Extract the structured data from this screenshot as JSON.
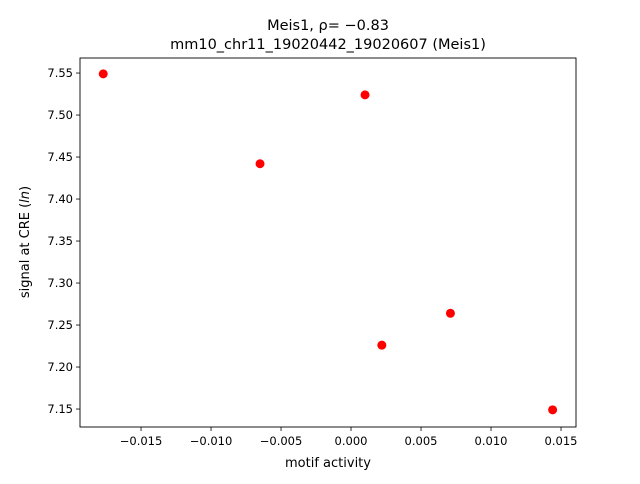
{
  "chart_data": {
    "type": "scatter",
    "title_line1": "Meis1, ρ= −0.83",
    "title_line2": "mm10_chr11_19020442_19020607 (Meis1)",
    "xlabel": "motif activity",
    "ylabel": "signal at CRE (ln)",
    "xlim": [
      -0.01936,
      0.01607
    ],
    "ylim": [
      7.1286,
      7.5679
    ],
    "xticks": [
      -0.015,
      -0.01,
      -0.005,
      0.0,
      0.005,
      0.01,
      0.015
    ],
    "xtick_labels": [
      "−0.015",
      "−0.010",
      "−0.005",
      "0.000",
      "0.005",
      "0.010",
      "0.015"
    ],
    "yticks": [
      7.15,
      7.2,
      7.25,
      7.3,
      7.35,
      7.4,
      7.45,
      7.5,
      7.55
    ],
    "ytick_labels": [
      "7.15",
      "7.20",
      "7.25",
      "7.30",
      "7.35",
      "7.40",
      "7.45",
      "7.50",
      "7.55"
    ],
    "grid": false,
    "marker_color": "#ff0000",
    "points": [
      {
        "x": -0.0177,
        "y": 7.549
      },
      {
        "x": 0.001,
        "y": 7.524
      },
      {
        "x": -0.0065,
        "y": 7.442
      },
      {
        "x": 0.0071,
        "y": 7.264
      },
      {
        "x": 0.0022,
        "y": 7.226
      },
      {
        "x": 0.0144,
        "y": 7.149
      }
    ]
  }
}
